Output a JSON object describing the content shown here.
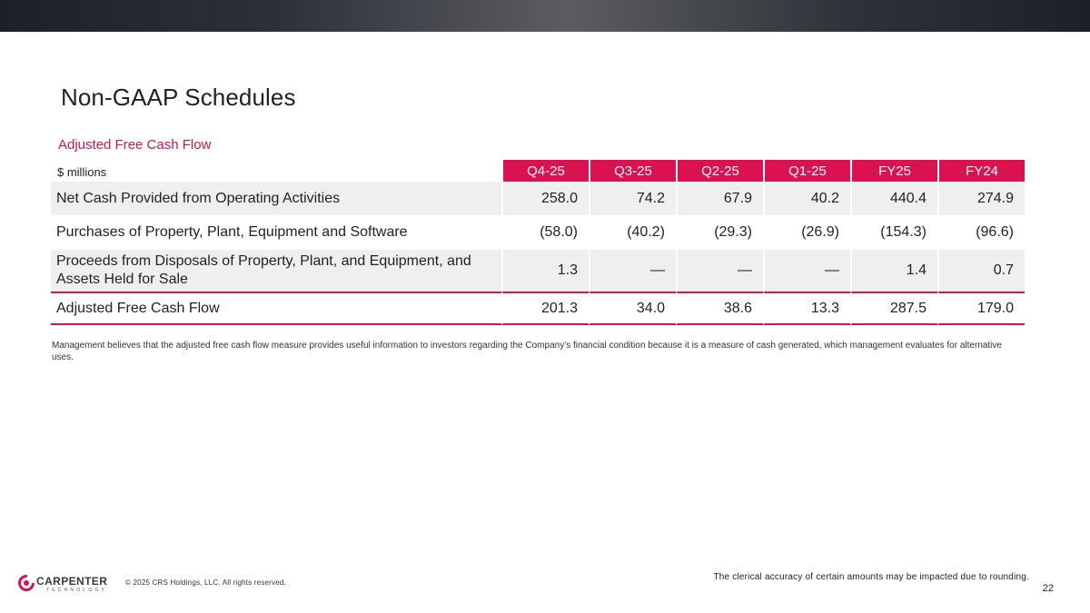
{
  "header": {
    "title": "Non-GAAP Schedules",
    "subtitle": "Adjusted Free Cash Flow"
  },
  "table": {
    "units": "$ millions",
    "columns": [
      "Q4-25",
      "Q3-25",
      "Q2-25",
      "Q1-25",
      "FY25",
      "FY24"
    ],
    "rows": [
      {
        "label": "Net Cash Provided from Operating Activities",
        "values": [
          "258.0",
          "74.2",
          "67.9",
          "40.2",
          "440.4",
          "274.9"
        ]
      },
      {
        "label": "Purchases of Property, Plant, Equipment and Software",
        "values": [
          "(58.0)",
          "(40.2)",
          "(29.3)",
          "(26.9)",
          "(154.3)",
          "(96.6)"
        ]
      },
      {
        "label": "Proceeds from Disposals of Property, Plant, and Equipment, and Assets Held for Sale",
        "values": [
          "1.3",
          "—",
          "—",
          "—",
          "1.4",
          "0.7"
        ]
      },
      {
        "label": "Adjusted Free Cash Flow",
        "values": [
          "201.3",
          "34.0",
          "38.6",
          "13.3",
          "287.5",
          "179.0"
        ]
      }
    ]
  },
  "note": "Management believes that the adjusted free cash flow measure provides useful information to investors regarding the Company’s financial condition because it is a measure of cash generated, which management evaluates for alternative uses.",
  "footer": {
    "logo_name": "CARPENTER",
    "logo_sub": "TECHNOLOGY",
    "copyright": "© 2025 CRS Holdings, LLC. All rights reserved.",
    "disclaimer": "The clerical accuracy of certain amounts may be impacted due to rounding.",
    "page_number": "22"
  },
  "colors": {
    "accent": "#dc1250",
    "row_shade": "#efefef"
  }
}
